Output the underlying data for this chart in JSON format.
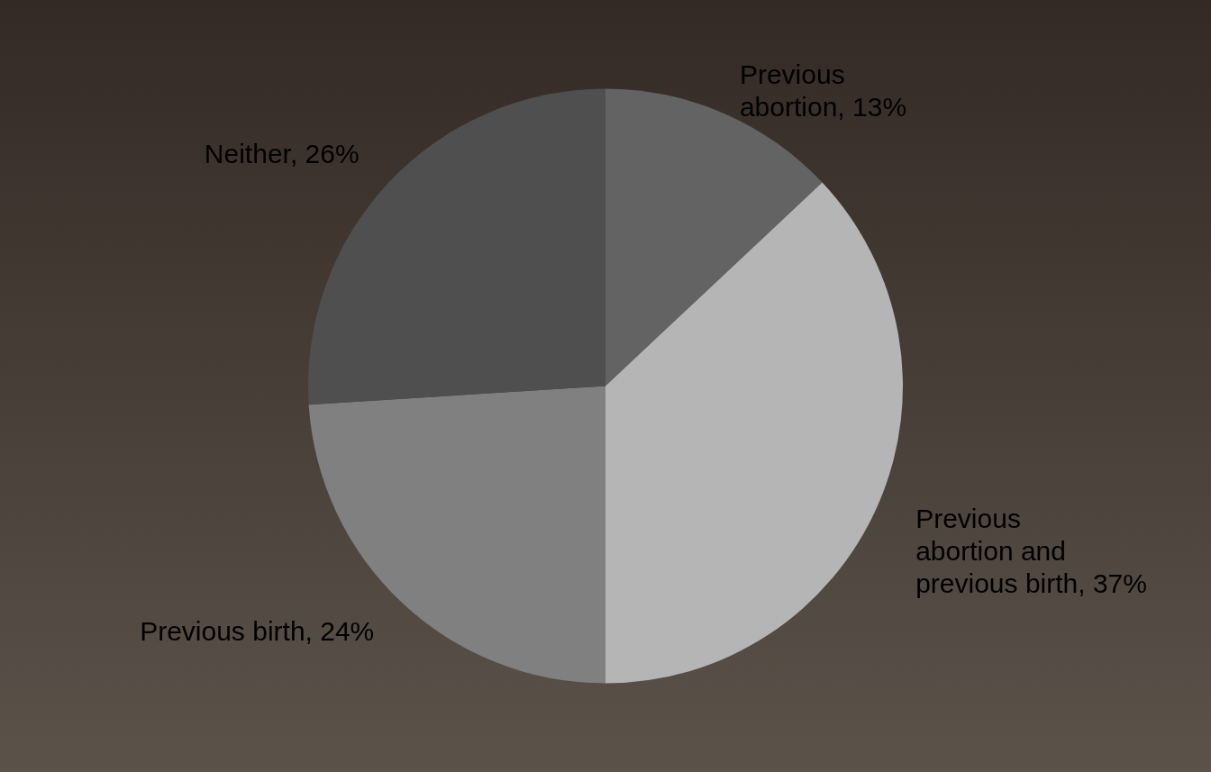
{
  "chart_data": {
    "type": "pie",
    "categories": [
      "Previous abortion",
      "Previous abortion and previous birth",
      "Previous birth",
      "Neither"
    ],
    "values": [
      13,
      37,
      24,
      26
    ],
    "colors": [
      "#636363",
      "#b5b5b5",
      "#808080",
      "#4f4f4f"
    ],
    "value_labels": [
      "13%",
      "37%",
      "24%",
      "26%"
    ],
    "legend": false
  }
}
